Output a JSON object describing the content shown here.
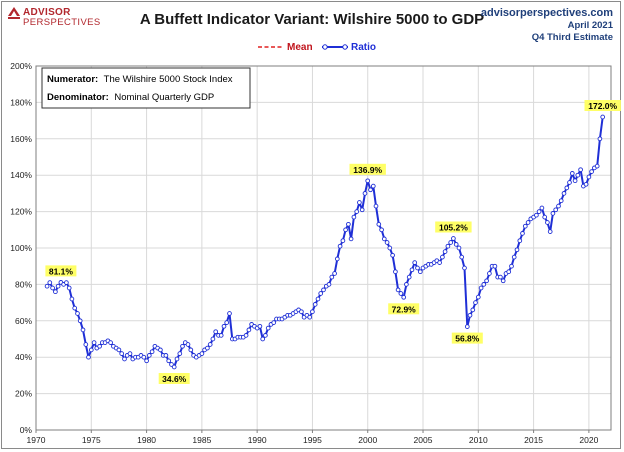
{
  "header": {
    "logo_top": "ADVISOR",
    "logo_bottom": "PERSPECTIVES",
    "title": "A Buffett Indicator Variant: Wilshire 5000 to GDP",
    "source_site": "advisorperspectives.com",
    "source_date": "April 2021",
    "source_note": "Q4 Third Estimate"
  },
  "colors": {
    "mean": "#e02020",
    "ratio": "#1f2fd6",
    "annotation_bg": "#ffff66",
    "grid": "#d9d9d9"
  },
  "chart_data": {
    "type": "line",
    "title": "A Buffett Indicator Variant: Wilshire 5000 to GDP",
    "xlabel": "",
    "ylabel": "",
    "xlim": [
      1970,
      2022
    ],
    "ylim": [
      0,
      200
    ],
    "x_ticks": [
      1970,
      1975,
      1980,
      1985,
      1990,
      1995,
      2000,
      2005,
      2010,
      2015,
      2020
    ],
    "y_ticks": [
      "0%",
      "20%",
      "40%",
      "60%",
      "80%",
      "100%",
      "120%",
      "140%",
      "160%",
      "180%",
      "200%"
    ],
    "y_tick_values": [
      0,
      20,
      40,
      60,
      80,
      100,
      120,
      140,
      160,
      180,
      200
    ],
    "grid": true,
    "legend": {
      "placement": "top-center",
      "entries": [
        "Mean",
        "Ratio"
      ]
    },
    "series": [
      {
        "name": "Ratio",
        "points": [
          [
            1971.0,
            79
          ],
          [
            1971.25,
            81
          ],
          [
            1971.5,
            78
          ],
          [
            1971.75,
            76
          ],
          [
            1972.0,
            79
          ],
          [
            1972.25,
            81.1
          ],
          [
            1972.5,
            80
          ],
          [
            1972.75,
            81
          ],
          [
            1973.0,
            78
          ],
          [
            1973.25,
            72
          ],
          [
            1973.5,
            67
          ],
          [
            1973.75,
            64
          ],
          [
            1974.0,
            60
          ],
          [
            1974.25,
            55
          ],
          [
            1974.5,
            47
          ],
          [
            1974.75,
            40
          ],
          [
            1975.0,
            44
          ],
          [
            1975.25,
            48
          ],
          [
            1975.5,
            45
          ],
          [
            1975.75,
            46
          ],
          [
            1976.0,
            48
          ],
          [
            1976.25,
            48
          ],
          [
            1976.5,
            49
          ],
          [
            1976.75,
            48
          ],
          [
            1977.0,
            46
          ],
          [
            1977.25,
            45
          ],
          [
            1977.5,
            44
          ],
          [
            1977.75,
            42
          ],
          [
            1978.0,
            39
          ],
          [
            1978.25,
            41
          ],
          [
            1978.5,
            42
          ],
          [
            1978.75,
            39
          ],
          [
            1979.0,
            40
          ],
          [
            1979.25,
            40
          ],
          [
            1979.5,
            41
          ],
          [
            1979.75,
            40
          ],
          [
            1980.0,
            38
          ],
          [
            1980.25,
            41
          ],
          [
            1980.5,
            43
          ],
          [
            1980.75,
            46
          ],
          [
            1981.0,
            45
          ],
          [
            1981.25,
            44
          ],
          [
            1981.5,
            41
          ],
          [
            1981.75,
            41
          ],
          [
            1982.0,
            38
          ],
          [
            1982.25,
            36
          ],
          [
            1982.5,
            34.6
          ],
          [
            1982.75,
            39
          ],
          [
            1983.0,
            42
          ],
          [
            1983.25,
            46
          ],
          [
            1983.5,
            48
          ],
          [
            1983.75,
            47
          ],
          [
            1984.0,
            44
          ],
          [
            1984.25,
            41
          ],
          [
            1984.5,
            40
          ],
          [
            1984.75,
            41
          ],
          [
            1985.0,
            42
          ],
          [
            1985.25,
            44
          ],
          [
            1985.5,
            45
          ],
          [
            1985.75,
            47
          ],
          [
            1986.0,
            50
          ],
          [
            1986.25,
            54
          ],
          [
            1986.5,
            52
          ],
          [
            1986.75,
            52
          ],
          [
            1987.0,
            57
          ],
          [
            1987.25,
            59
          ],
          [
            1987.5,
            64
          ],
          [
            1987.75,
            50
          ],
          [
            1988.0,
            50
          ],
          [
            1988.25,
            51
          ],
          [
            1988.5,
            51
          ],
          [
            1988.75,
            51
          ],
          [
            1989.0,
            52
          ],
          [
            1989.25,
            55
          ],
          [
            1989.5,
            58
          ],
          [
            1989.75,
            57
          ],
          [
            1990.0,
            56
          ],
          [
            1990.25,
            57
          ],
          [
            1990.5,
            50
          ],
          [
            1990.75,
            52
          ],
          [
            1991.0,
            56
          ],
          [
            1991.25,
            58
          ],
          [
            1991.5,
            59
          ],
          [
            1991.75,
            61
          ],
          [
            1992.0,
            61
          ],
          [
            1992.25,
            61
          ],
          [
            1992.5,
            62
          ],
          [
            1992.75,
            63
          ],
          [
            1993.0,
            63
          ],
          [
            1993.25,
            64
          ],
          [
            1993.5,
            65
          ],
          [
            1993.75,
            66
          ],
          [
            1994.0,
            65
          ],
          [
            1994.25,
            62
          ],
          [
            1994.5,
            63
          ],
          [
            1994.75,
            62
          ],
          [
            1995.0,
            65
          ],
          [
            1995.25,
            69
          ],
          [
            1995.5,
            72
          ],
          [
            1995.75,
            75
          ],
          [
            1996.0,
            77
          ],
          [
            1996.25,
            79
          ],
          [
            1996.5,
            80
          ],
          [
            1996.75,
            84
          ],
          [
            1997.0,
            86
          ],
          [
            1997.25,
            94
          ],
          [
            1997.5,
            101
          ],
          [
            1997.75,
            104
          ],
          [
            1998.0,
            110
          ],
          [
            1998.25,
            113
          ],
          [
            1998.5,
            105
          ],
          [
            1998.75,
            117
          ],
          [
            1999.0,
            120
          ],
          [
            1999.25,
            125
          ],
          [
            1999.5,
            121
          ],
          [
            1999.75,
            130
          ],
          [
            2000.0,
            136.9
          ],
          [
            2000.25,
            132
          ],
          [
            2000.5,
            134
          ],
          [
            2000.75,
            123
          ],
          [
            2001.0,
            113
          ],
          [
            2001.25,
            110
          ],
          [
            2001.5,
            105
          ],
          [
            2001.75,
            103
          ],
          [
            2002.0,
            100
          ],
          [
            2002.25,
            96
          ],
          [
            2002.5,
            87
          ],
          [
            2002.75,
            77
          ],
          [
            2003.0,
            75
          ],
          [
            2003.25,
            72.9
          ],
          [
            2003.5,
            80
          ],
          [
            2003.75,
            84
          ],
          [
            2004.0,
            88
          ],
          [
            2004.25,
            92
          ],
          [
            2004.5,
            89
          ],
          [
            2004.75,
            87
          ],
          [
            2005.0,
            89
          ],
          [
            2005.25,
            90
          ],
          [
            2005.5,
            91
          ],
          [
            2005.75,
            91
          ],
          [
            2006.0,
            92
          ],
          [
            2006.25,
            93
          ],
          [
            2006.5,
            92
          ],
          [
            2006.75,
            95
          ],
          [
            2007.0,
            98
          ],
          [
            2007.25,
            101
          ],
          [
            2007.5,
            103
          ],
          [
            2007.75,
            105.2
          ],
          [
            2008.0,
            102
          ],
          [
            2008.25,
            100
          ],
          [
            2008.5,
            95
          ],
          [
            2008.75,
            89
          ],
          [
            2009.0,
            56.8
          ],
          [
            2009.25,
            63
          ],
          [
            2009.5,
            66
          ],
          [
            2009.75,
            70
          ],
          [
            2010.0,
            73
          ],
          [
            2010.25,
            78
          ],
          [
            2010.5,
            80
          ],
          [
            2010.75,
            82
          ],
          [
            2011.0,
            86
          ],
          [
            2011.25,
            90
          ],
          [
            2011.5,
            90
          ],
          [
            2011.75,
            84
          ],
          [
            2012.0,
            84
          ],
          [
            2012.25,
            82
          ],
          [
            2012.5,
            86
          ],
          [
            2012.75,
            87
          ],
          [
            2013.0,
            90
          ],
          [
            2013.25,
            95
          ],
          [
            2013.5,
            99
          ],
          [
            2013.75,
            104
          ],
          [
            2014.0,
            108
          ],
          [
            2014.25,
            112
          ],
          [
            2014.5,
            114
          ],
          [
            2014.75,
            116
          ],
          [
            2015.0,
            117
          ],
          [
            2015.25,
            118
          ],
          [
            2015.5,
            120
          ],
          [
            2015.75,
            122
          ],
          [
            2016.0,
            117
          ],
          [
            2016.25,
            114
          ],
          [
            2016.5,
            109
          ],
          [
            2016.75,
            119
          ],
          [
            2017.0,
            121
          ],
          [
            2017.25,
            123
          ],
          [
            2017.5,
            126
          ],
          [
            2017.75,
            130
          ],
          [
            2018.0,
            133
          ],
          [
            2018.25,
            136
          ],
          [
            2018.5,
            141
          ],
          [
            2018.75,
            137
          ],
          [
            2019.0,
            140
          ],
          [
            2019.25,
            143
          ],
          [
            2019.5,
            134
          ],
          [
            2019.75,
            135
          ],
          [
            2020.0,
            139
          ],
          [
            2020.25,
            142
          ],
          [
            2020.5,
            144
          ],
          [
            2020.75,
            145
          ],
          [
            2021.0,
            160
          ],
          [
            2021.25,
            172.0
          ]
        ]
      }
    ],
    "annotations": [
      {
        "label": "81.1%",
        "x": 1972.25,
        "y": 81.1,
        "position": "above"
      },
      {
        "label": "34.6%",
        "x": 1982.5,
        "y": 34.6,
        "position": "below"
      },
      {
        "label": "136.9%",
        "x": 2000.0,
        "y": 136.9,
        "position": "above"
      },
      {
        "label": "72.9%",
        "x": 2003.25,
        "y": 72.9,
        "position": "below"
      },
      {
        "label": "105.2%",
        "x": 2007.75,
        "y": 105.2,
        "position": "above"
      },
      {
        "label": "56.8%",
        "x": 2009.0,
        "y": 56.8,
        "position": "below"
      },
      {
        "label": "172.0%",
        "x": 2021.25,
        "y": 172.0,
        "position": "above"
      }
    ]
  },
  "note_box": {
    "numerator_label": "Numerator:",
    "numerator_value": "The Wilshire 5000 Stock Index",
    "denominator_label": "Denominator:",
    "denominator_value": "Nominal Quarterly GDP"
  }
}
